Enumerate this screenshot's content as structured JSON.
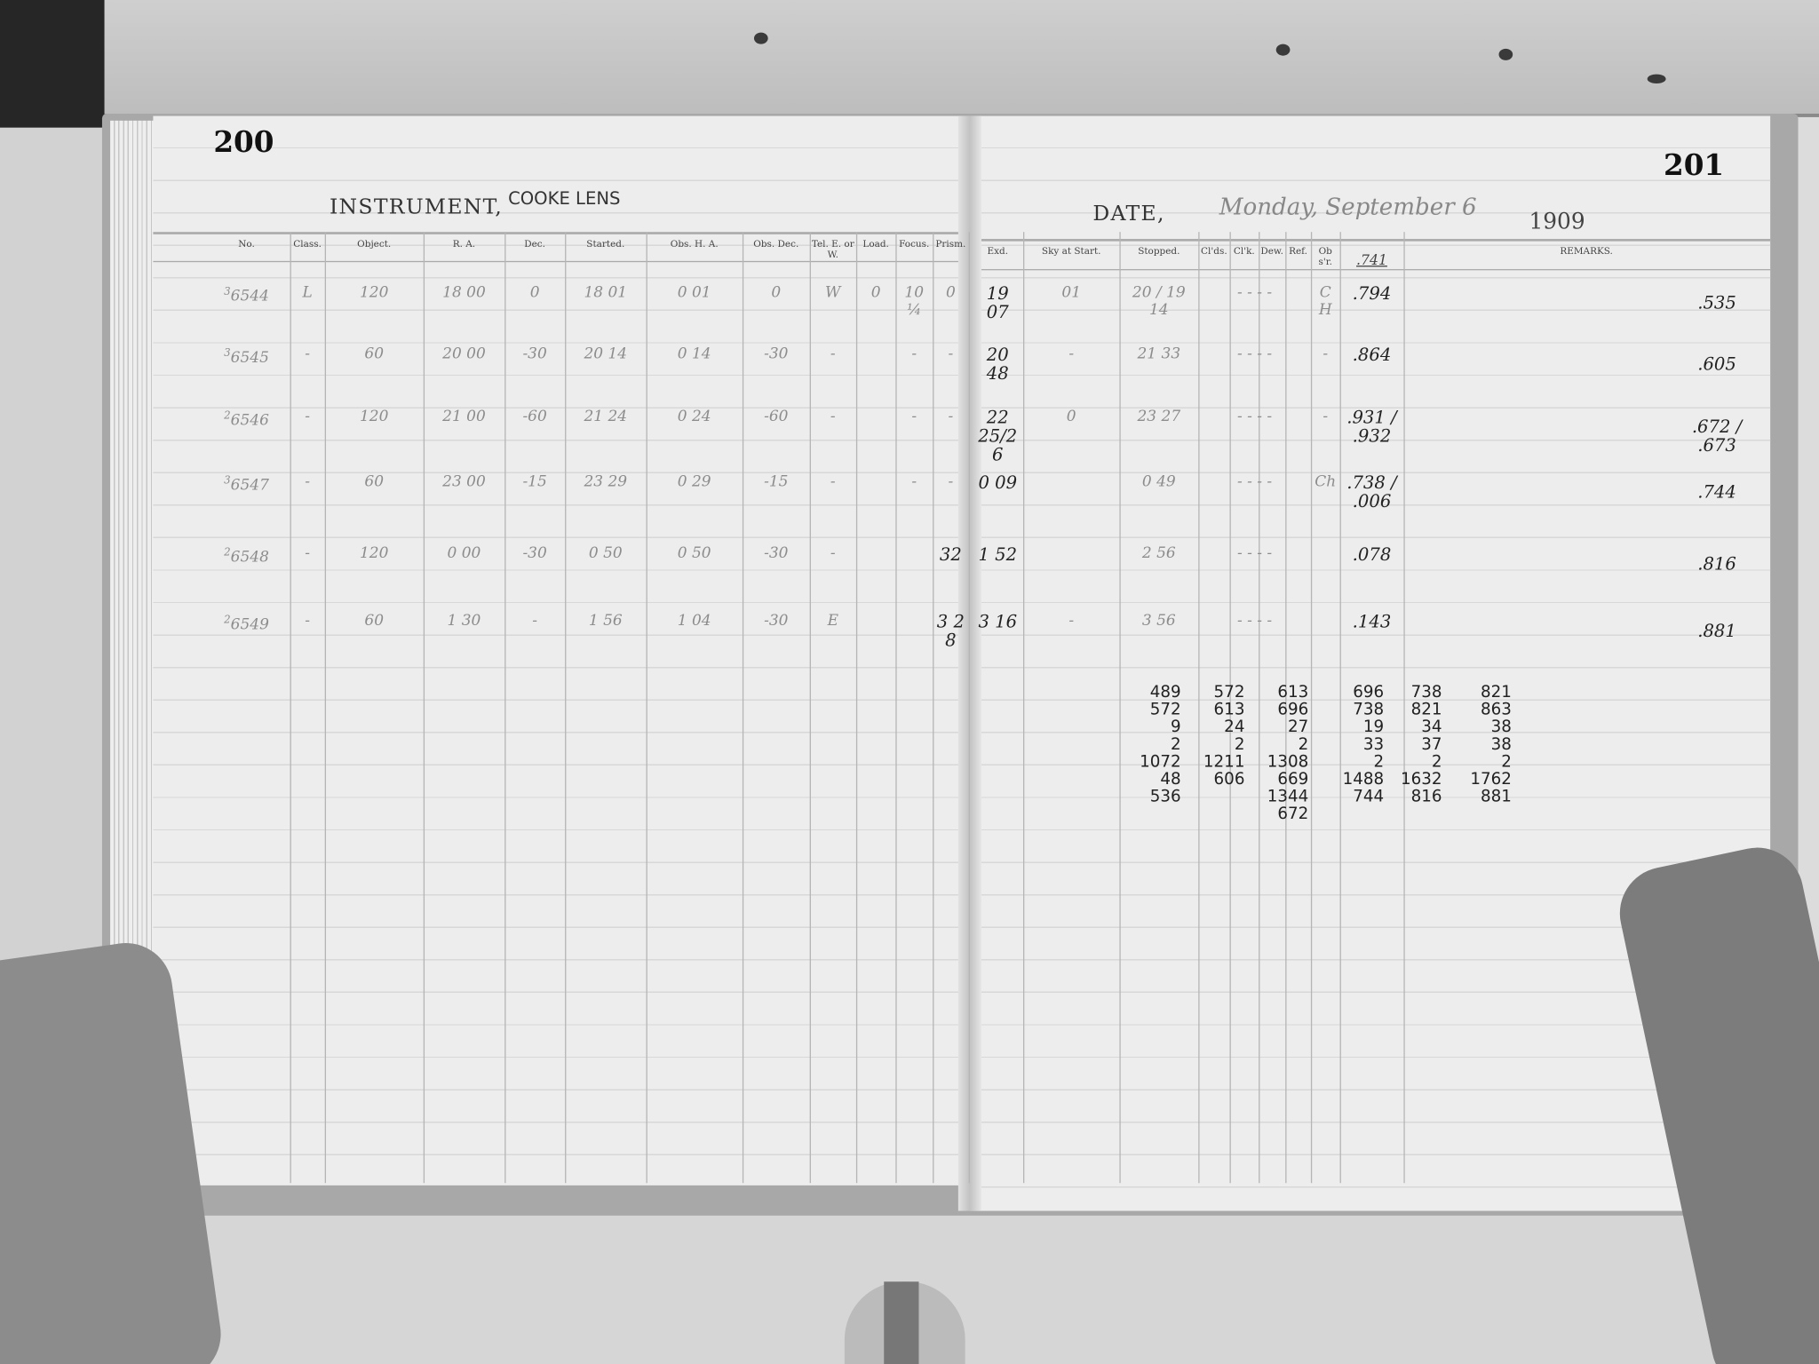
{
  "left_page": {
    "page_number": "200",
    "instrument_label": "INSTRUMENT,",
    "instrument_value": "COOKE LENS"
  },
  "right_page": {
    "page_number": "201",
    "date_label": "DATE,",
    "date_value": "Monday, September 6",
    "year": "1909"
  },
  "left_columns": [
    "No.",
    "Class.",
    "Object.",
    "R. A.",
    "Dec.",
    "Started.",
    "Obs. H. A.",
    "Obs. Dec.",
    "Tel. E. or W.",
    "Load.",
    "Focus.",
    "Prism."
  ],
  "right_columns": [
    "Exd.",
    "Sky at Start.",
    "Stopped.",
    "Cl'ds.",
    "Cl'k.",
    "Dew.",
    "Ref.",
    "Obs'r.",
    ".741",
    "REMARKS."
  ],
  "rows": [
    {
      "sup": "3",
      "no": "6544",
      "cls": "L",
      "obj": "120",
      "ra": "18  00",
      "dec": "0",
      "start": "18  01",
      "oha": "0    01",
      "odec": "0",
      "tel": "W",
      "load": "0",
      "focus": "10¼",
      "prism": "0",
      "exd": "19 07",
      "sky": "01",
      "stop": "20 / 19  14",
      "clds": "- - - -",
      "obsr": "CH",
      "val": ".794",
      "rem": ".535"
    },
    {
      "sup": "3",
      "no": "6545",
      "cls": "-",
      "obj": "60",
      "ra": "20  00",
      "dec": "-30",
      "start": "20  14",
      "oha": "0    14",
      "odec": "-30",
      "tel": "-",
      "load": "",
      "focus": "-",
      "prism": "-",
      "exd": "20 48",
      "sky": "-",
      "stop": "21  33",
      "clds": "- - - -",
      "obsr": "-",
      "val": ".864",
      "rem": ".605"
    },
    {
      "sup": "2",
      "no": "6546",
      "cls": "-",
      "obj": "120",
      "ra": "21  00",
      "dec": "-60",
      "start": "21  24",
      "oha": "0    24",
      "odec": "-60",
      "tel": "-",
      "load": "",
      "focus": "-",
      "prism": "-",
      "exd": "22 25/26",
      "sky": "0",
      "stop": "23  27",
      "clds": "- - - -",
      "obsr": "-",
      "val": ".931 / .932",
      "rem": ".672 / .673"
    },
    {
      "sup": "3",
      "no": "6547",
      "cls": "-",
      "obj": "60",
      "ra": "23  00",
      "dec": "-15",
      "start": "23  29",
      "oha": "0    29",
      "odec": "-15",
      "tel": "-",
      "load": "",
      "focus": "-",
      "prism": "-",
      "exd": "0 09",
      "sky": "",
      "stop": "0   49",
      "clds": "- - - -",
      "obsr": "Ch",
      "val": ".738 / .006",
      "rem": ".744"
    },
    {
      "sup": "2",
      "no": "6548",
      "cls": "-",
      "obj": "120",
      "ra": "0  00",
      "dec": "-30",
      "start": "0  50",
      "oha": "0    50",
      "odec": "-30",
      "tel": "-",
      "load": "",
      "focus": "",
      "prism": "32",
      "exd": "1 52",
      "sky": "",
      "stop": "2   56",
      "clds": "- - - -",
      "obsr": "",
      "val": ".078",
      "rem": ".816"
    },
    {
      "sup": "2",
      "no": "6549",
      "cls": "-",
      "obj": "60",
      "ra": "1  30",
      "dec": "-",
      "start": "1  56",
      "oha": "1    04",
      "odec": "-30",
      "tel": "E",
      "load": "",
      "focus": "",
      "prism": "3 2 8",
      "exd": "3 16",
      "sky": "-",
      "stop": "3   56",
      "clds": "- - - -",
      "obsr": "",
      "val": ".143",
      "rem": ".881"
    }
  ],
  "calculations": [
    "489\n572\n9\n2\n1072\n48\n536",
    "572\n613\n24\n2\n1211\n606",
    "613\n696\n27\n2\n1308\n669\n1344\n672",
    "696\n738\n19\n33\n2\n1488\n744",
    "738\n821\n34\n37\n2\n1632\n816",
    "821\n863\n38\n38\n2\n1762\n881"
  ]
}
